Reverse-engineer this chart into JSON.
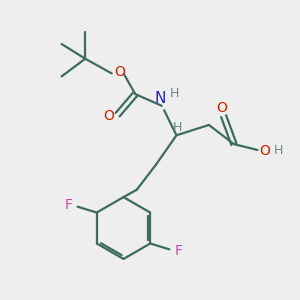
{
  "bg_color": "#eeeeee",
  "bond_color": "#3d6b5e",
  "O_color": "#cc2200",
  "N_color": "#2222cc",
  "F_color": "#cc44aa",
  "H_color": "#6a8a84",
  "line_width": 1.6,
  "figsize": [
    3.0,
    3.0
  ],
  "dpi": 100,
  "xlim": [
    0,
    10
  ],
  "ylim": [
    0,
    10
  ]
}
